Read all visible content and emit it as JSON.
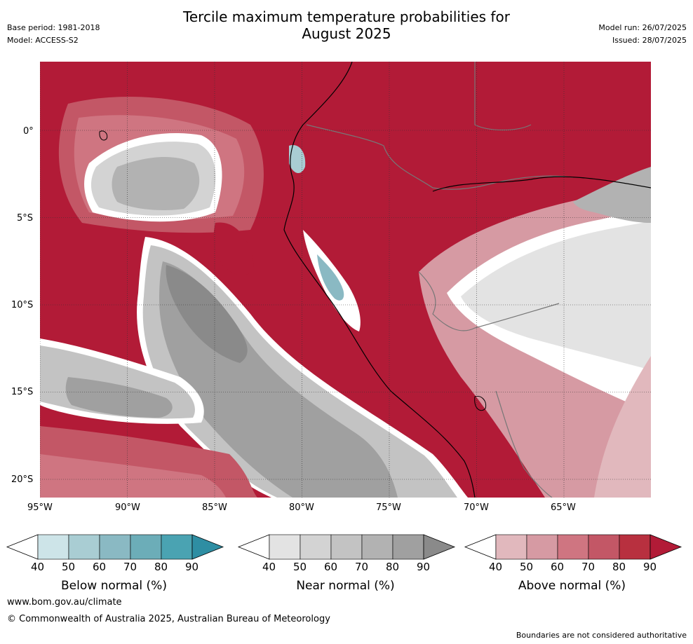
{
  "header": {
    "title_line1": "Tercile maximum temperature probabilities for",
    "title_line2": "August 2025",
    "base_period": "Base period: 1981-2018",
    "model": "Model: ACCESS-S2",
    "model_run": "Model run: 26/07/2025",
    "issued": "Issued: 28/07/2025"
  },
  "map": {
    "lon_ticks": [
      "95°W",
      "90°W",
      "85°W",
      "80°W",
      "75°W",
      "70°W",
      "65°W"
    ],
    "lat_ticks": [
      "0°",
      "5°S",
      "10°S",
      "15°S",
      "20°S"
    ]
  },
  "colorbars": [
    {
      "label": "Below normal (%)",
      "ticks": [
        "40",
        "50",
        "60",
        "70",
        "80",
        "90"
      ],
      "colors": [
        "#cde4e8",
        "#a9cdd3",
        "#8ab9c3",
        "#6cadb8",
        "#4aa3b2",
        "#2e8ea3"
      ]
    },
    {
      "label": "Near normal (%)",
      "ticks": [
        "40",
        "50",
        "60",
        "70",
        "80",
        "90"
      ],
      "colors": [
        "#e3e3e3",
        "#d3d3d3",
        "#c3c3c3",
        "#b2b2b2",
        "#a0a0a0",
        "#8a8a8a"
      ]
    },
    {
      "label": "Above normal (%)",
      "ticks": [
        "40",
        "50",
        "60",
        "70",
        "80",
        "90"
      ],
      "colors": [
        "#e1b8bd",
        "#d69aa3",
        "#cf7581",
        "#c35766",
        "#b8303f",
        "#b21b37"
      ]
    }
  ],
  "footer": {
    "website": "www.bom.gov.au/climate",
    "copyright": "© Commonwealth of Australia 2025, Australian Bureau of Meteorology",
    "disclaimer": "Boundaries are not considered authoritative"
  }
}
